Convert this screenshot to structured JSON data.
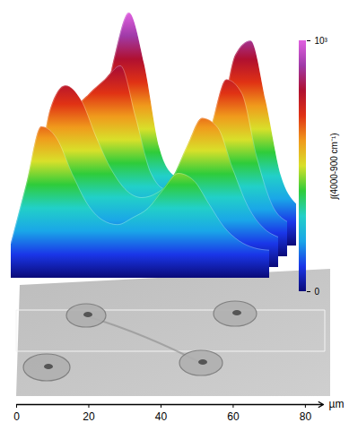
{
  "chart_data": {
    "type": "surface",
    "x_label": "µm",
    "x": [
      0,
      5,
      10,
      15,
      20,
      25,
      30,
      35,
      40,
      45,
      50,
      55,
      60,
      65,
      70,
      75,
      80,
      85
    ],
    "xlim": [
      0,
      85
    ],
    "xticks": [
      0,
      20,
      40,
      60,
      80
    ],
    "z": [
      [
        120,
        150,
        200,
        300,
        480,
        800,
        1000,
        780,
        420,
        300,
        280,
        320,
        520,
        820,
        880,
        620,
        300,
        180
      ],
      [
        110,
        180,
        420,
        620,
        700,
        760,
        820,
        600,
        360,
        290,
        300,
        340,
        560,
        760,
        700,
        420,
        220,
        150
      ],
      [
        120,
        320,
        680,
        780,
        720,
        560,
        420,
        330,
        300,
        320,
        380,
        520,
        640,
        600,
        420,
        260,
        170,
        130
      ],
      [
        150,
        400,
        650,
        600,
        450,
        320,
        250,
        230,
        260,
        300,
        380,
        450,
        420,
        320,
        220,
        160,
        130,
        120
      ]
    ],
    "zlim": [
      0,
      1000
    ],
    "zticks": [
      0,
      {
        "value": 1000,
        "label": "10³"
      }
    ],
    "z_label": "∫(4000-900 cm⁻¹)"
  }
}
